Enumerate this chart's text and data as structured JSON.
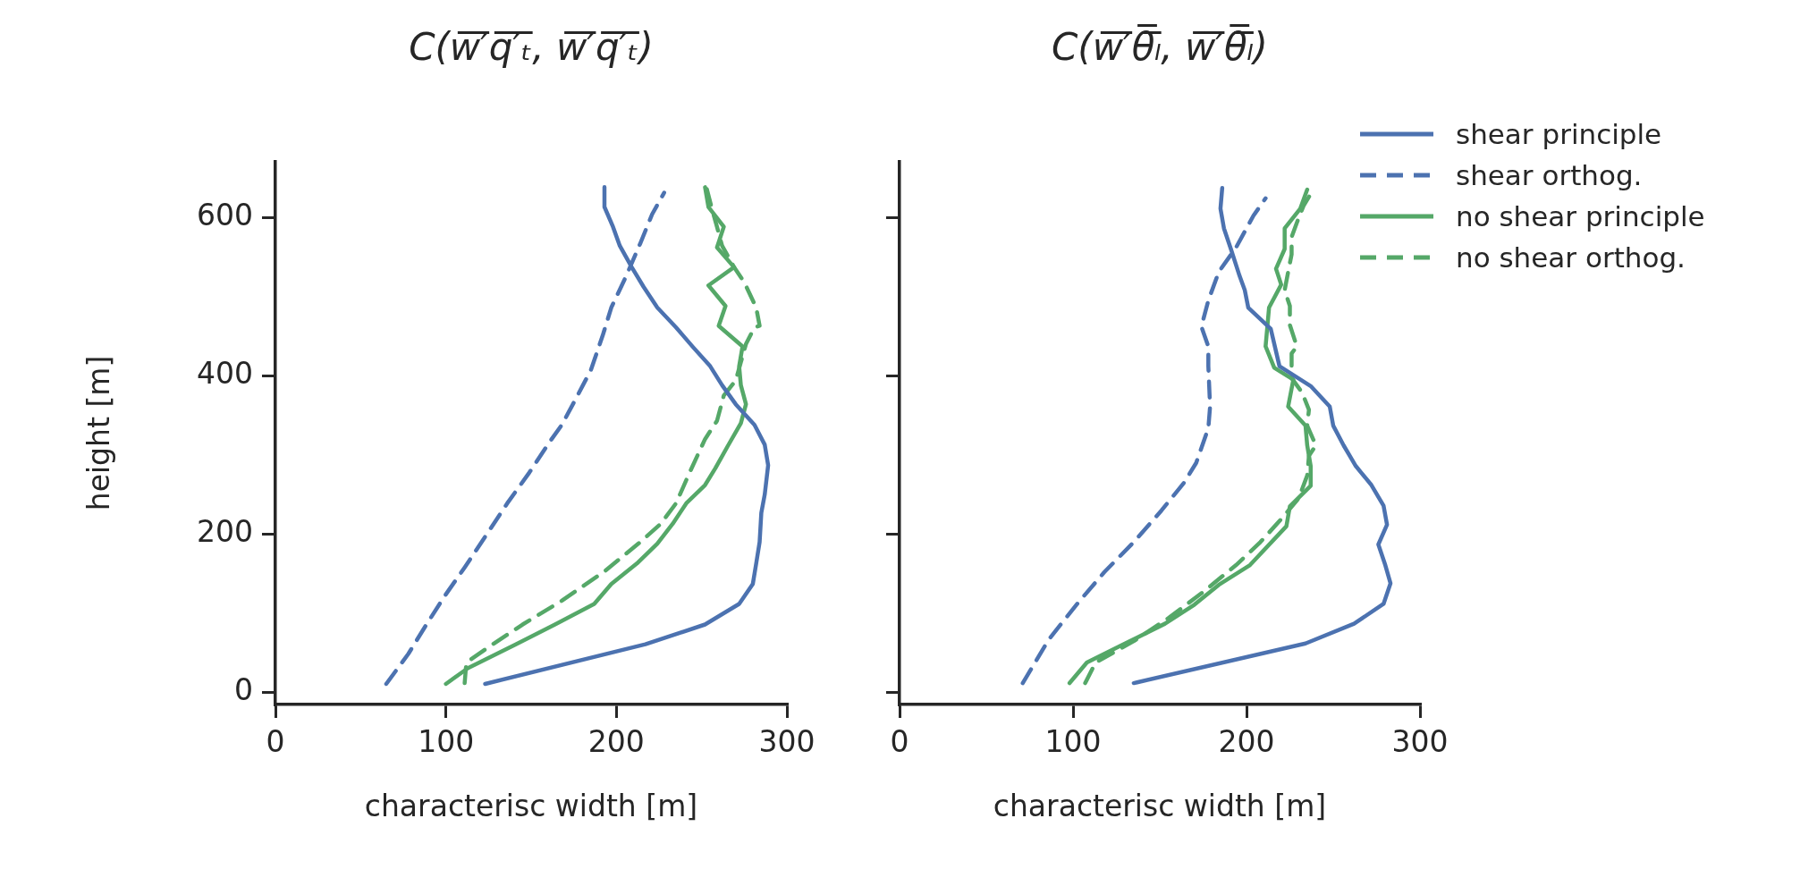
{
  "chart_data": [
    {
      "type": "line",
      "title": "C(w̅′̅q̅′̅ₜ̅, w̅′̅q̅′̅ₜ̅)",
      "xlabel": "characterisc width [m]",
      "ylabel": "height [m]",
      "xlim": [
        0,
        300
      ],
      "xticks": [
        0,
        100,
        200,
        300
      ],
      "ylim": [
        -15,
        670
      ],
      "yticks": [
        0,
        200,
        400,
        600
      ],
      "series": [
        {
          "color": "#4c72b0",
          "line_style": "solid",
          "x": [
            193,
            193,
            198,
            202,
            209,
            216,
            224,
            235,
            245,
            255,
            262,
            270,
            281,
            287,
            289,
            287,
            285,
            284,
            282,
            280,
            272,
            252,
            217,
            123
          ],
          "values": [
            638,
            613,
            588,
            564,
            537,
            512,
            486,
            461,
            436,
            412,
            388,
            364,
            338,
            313,
            287,
            250,
            227,
            190,
            163,
            137,
            112,
            86,
            61,
            11
          ]
        },
        {
          "color": "#4c72b0",
          "line_style": "dashed",
          "x": [
            65,
            78,
            88,
            99,
            111,
            124,
            136,
            149,
            161,
            168,
            176,
            185,
            192,
            197,
            206,
            214,
            221,
            228
          ],
          "values": [
            11,
            49,
            84,
            121,
            158,
            200,
            239,
            278,
            317,
            338,
            370,
            407,
            451,
            486,
            527,
            567,
            604,
            631
          ]
        },
        {
          "color": "#55a868",
          "line_style": "solid",
          "x": [
            100,
            113,
            141,
            164,
            187,
            197,
            212,
            224,
            233,
            241,
            252,
            258,
            265,
            273,
            276,
            273,
            272,
            274,
            260,
            264,
            254,
            269,
            259,
            263,
            254,
            252
          ],
          "values": [
            11,
            31,
            61,
            86,
            112,
            137,
            163,
            188,
            213,
            239,
            262,
            283,
            310,
            340,
            364,
            388,
            412,
            437,
            463,
            488,
            514,
            537,
            562,
            588,
            613,
            638
          ]
        },
        {
          "color": "#55a868",
          "line_style": "dashed",
          "x": [
            111,
            112,
            124,
            145,
            168,
            193,
            214,
            226,
            235,
            243,
            252,
            259,
            263,
            270,
            273,
            276,
            281,
            284,
            282,
            275,
            269,
            262,
            259,
            256,
            253
          ],
          "values": [
            12,
            38,
            56,
            86,
            116,
            153,
            190,
            213,
            239,
            278,
            320,
            343,
            375,
            394,
            417,
            440,
            461,
            463,
            486,
            518,
            537,
            564,
            588,
            611,
            636
          ]
        }
      ]
    },
    {
      "type": "line",
      "title": "C(w̅′̅θ̅ₗ̅, w̅′̅θ̅ₗ̅)",
      "xlabel": "characterisc width [m]",
      "xlim": [
        0,
        300
      ],
      "xticks": [
        0,
        100,
        200,
        300
      ],
      "ylim": [
        -15,
        670
      ],
      "yticks": [
        0,
        200,
        400,
        600
      ],
      "tick_labels": "x",
      "legend": "top right",
      "series": [
        {
          "name": "shear principle",
          "color": "#4c72b0",
          "line_style": "solid",
          "x": [
            186,
            185,
            187,
            191,
            196,
            199,
            201,
            214,
            219,
            237,
            248,
            250,
            256,
            263,
            272,
            279,
            281,
            276,
            280,
            283,
            279,
            262,
            234,
            135
          ],
          "values": [
            637,
            611,
            586,
            560,
            526,
            508,
            486,
            459,
            412,
            387,
            361,
            337,
            312,
            286,
            262,
            236,
            212,
            187,
            161,
            138,
            112,
            87,
            62,
            12
          ]
        },
        {
          "name": "shear orthog.",
          "color": "#4c72b0",
          "line_style": "dashed",
          "x": [
            71,
            86,
            102,
            118,
            135,
            151,
            164,
            171,
            178,
            179,
            178,
            178,
            174,
            178,
            184,
            194,
            204,
            211
          ],
          "values": [
            12,
            67,
            111,
            152,
            190,
            230,
            265,
            290,
            334,
            361,
            412,
            437,
            462,
            495,
            531,
            562,
            602,
            624
          ]
        },
        {
          "name": "no shear principle",
          "color": "#55a868",
          "line_style": "solid",
          "x": [
            98,
            108,
            130,
            153,
            170,
            184,
            202,
            223,
            225,
            237,
            237,
            235,
            234,
            224,
            227,
            216,
            211,
            213,
            220,
            217,
            222,
            222,
            231,
            235
          ],
          "values": [
            12,
            38,
            62,
            87,
            111,
            136,
            161,
            210,
            235,
            261,
            286,
            312,
            337,
            361,
            395,
            410,
            437,
            486,
            515,
            535,
            560,
            586,
            611,
            635
          ]
        },
        {
          "name": "no shear orthog.",
          "color": "#55a868",
          "line_style": "dashed",
          "x": [
            107,
            113,
            135,
            155,
            175,
            194,
            208,
            220,
            230,
            235,
            236,
            240,
            235,
            236,
            232,
            226,
            226,
            229,
            225,
            225,
            222,
            224,
            226,
            226,
            229,
            233,
            238
          ],
          "values": [
            12,
            38,
            65,
            94,
            127,
            161,
            190,
            219,
            245,
            274,
            299,
            312,
            337,
            357,
            379,
            397,
            428,
            437,
            464,
            488,
            508,
            531,
            553,
            575,
            593,
            615,
            633
          ]
        }
      ]
    }
  ]
}
